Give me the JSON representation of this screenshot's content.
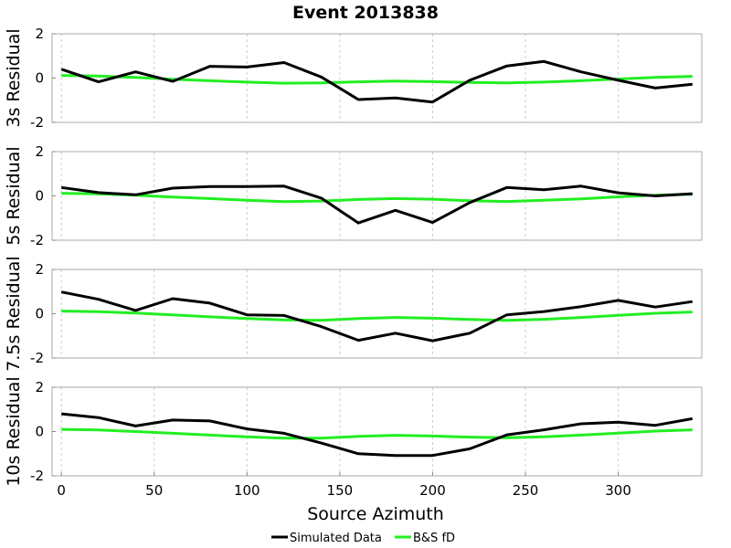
{
  "chart_data": {
    "type": "line",
    "title": "Event 2013838",
    "xlabel": "Source Azimuth",
    "x": [
      0,
      20,
      40,
      60,
      80,
      100,
      120,
      140,
      160,
      180,
      200,
      220,
      240,
      260,
      280,
      300,
      320,
      340
    ],
    "xlim": [
      -5,
      345
    ],
    "xticks": [
      "0",
      "50",
      "100",
      "150",
      "200",
      "250",
      "300"
    ],
    "xtick_values": [
      0,
      50,
      100,
      150,
      200,
      250,
      300
    ],
    "ylim": [
      -2,
      2
    ],
    "yticks": [
      "2",
      "0",
      "-2"
    ],
    "ytick_values": [
      2,
      0,
      -2
    ],
    "grid": "vertical dashed",
    "legend_position": "bottom-center",
    "colors": {
      "simulated": "#000000",
      "bs_fd": "#22ee22"
    },
    "legend": [
      "Simulated Data",
      "B&S fD"
    ],
    "panels": [
      {
        "ylabel": "3s Residual",
        "series": [
          {
            "name": "Simulated Data",
            "values": [
              0.4,
              -0.17,
              0.28,
              -0.15,
              0.53,
              0.5,
              0.7,
              0.05,
              -0.97,
              -0.9,
              -1.08,
              -0.1,
              0.55,
              0.75,
              0.28,
              -0.1,
              -0.45,
              -0.28
            ]
          },
          {
            "name": "B&S fD",
            "values": [
              0.12,
              0.09,
              0.03,
              -0.05,
              -0.12,
              -0.18,
              -0.23,
              -0.22,
              -0.17,
              -0.13,
              -0.16,
              -0.2,
              -0.22,
              -0.18,
              -0.12,
              -0.04,
              0.03,
              0.08
            ]
          }
        ]
      },
      {
        "ylabel": "5s Residual",
        "series": [
          {
            "name": "Simulated Data",
            "values": [
              0.38,
              0.15,
              0.05,
              0.35,
              0.42,
              0.42,
              0.44,
              -0.1,
              -1.22,
              -0.65,
              -1.2,
              -0.3,
              0.38,
              0.28,
              0.44,
              0.14,
              0.0,
              0.1
            ]
          },
          {
            "name": "B&S fD",
            "values": [
              0.12,
              0.09,
              0.03,
              -0.05,
              -0.12,
              -0.2,
              -0.26,
              -0.23,
              -0.16,
              -0.12,
              -0.15,
              -0.22,
              -0.25,
              -0.2,
              -0.13,
              -0.04,
              0.03,
              0.08
            ]
          }
        ]
      },
      {
        "ylabel": "7.5s Residual",
        "series": [
          {
            "name": "Simulated Data",
            "values": [
              0.98,
              0.65,
              0.15,
              0.68,
              0.48,
              -0.05,
              -0.08,
              -0.58,
              -1.2,
              -0.88,
              -1.22,
              -0.88,
              -0.05,
              0.1,
              0.32,
              0.6,
              0.3,
              0.55
            ]
          },
          {
            "name": "B&S fD",
            "values": [
              0.12,
              0.09,
              0.03,
              -0.05,
              -0.14,
              -0.22,
              -0.28,
              -0.3,
              -0.22,
              -0.17,
              -0.2,
              -0.26,
              -0.3,
              -0.25,
              -0.17,
              -0.07,
              0.02,
              0.08
            ]
          }
        ]
      },
      {
        "ylabel": "10s Residual",
        "series": [
          {
            "name": "Simulated Data",
            "values": [
              0.8,
              0.63,
              0.25,
              0.52,
              0.48,
              0.12,
              -0.08,
              -0.52,
              -1.0,
              -1.08,
              -1.08,
              -0.78,
              -0.15,
              0.08,
              0.35,
              0.42,
              0.28,
              0.58
            ]
          },
          {
            "name": "B&S fD",
            "values": [
              0.1,
              0.07,
              0.0,
              -0.08,
              -0.16,
              -0.24,
              -0.3,
              -0.3,
              -0.22,
              -0.17,
              -0.2,
              -0.25,
              -0.28,
              -0.24,
              -0.16,
              -0.07,
              0.02,
              0.08
            ]
          }
        ]
      }
    ]
  }
}
